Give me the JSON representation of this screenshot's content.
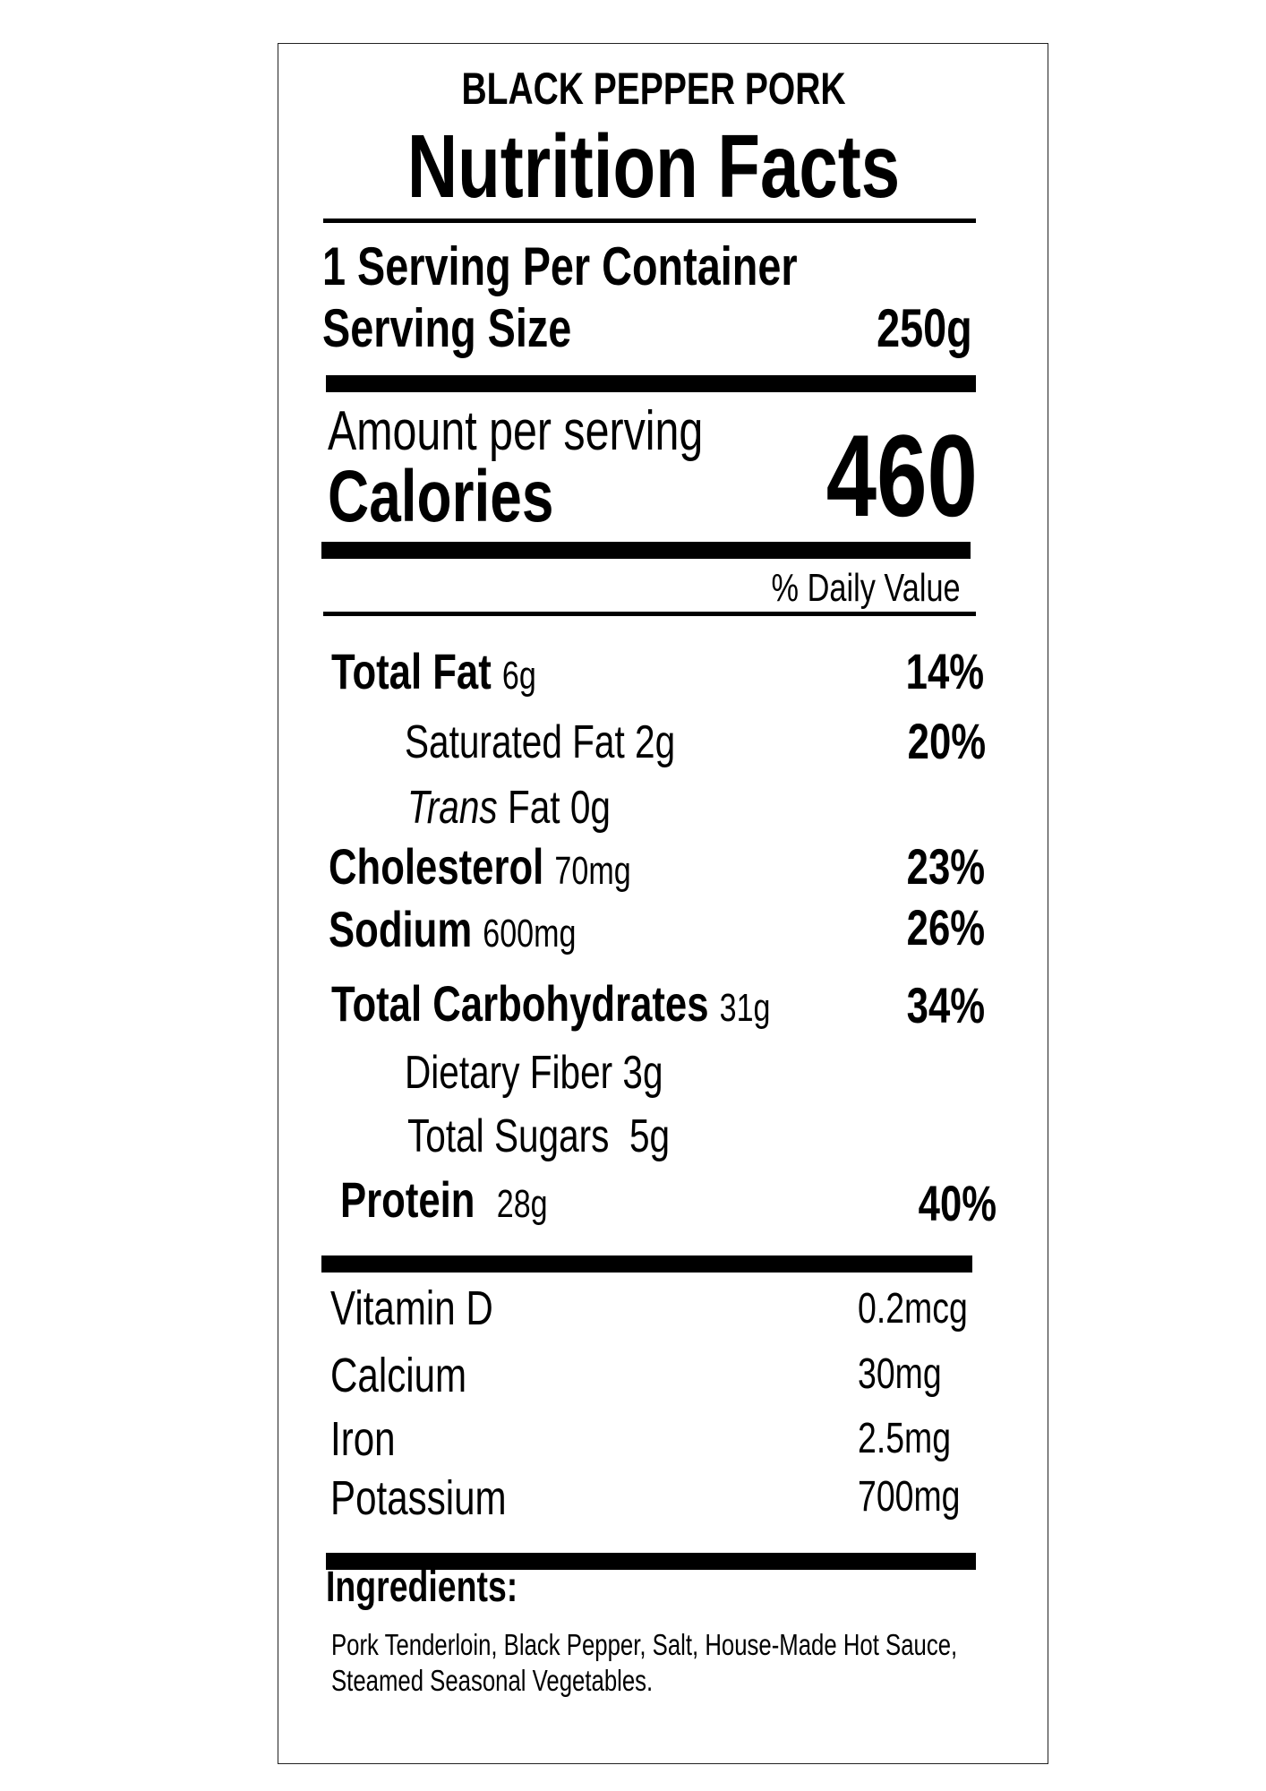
{
  "product_name": "BLACK PEPPER PORK",
  "title": "Nutrition Facts",
  "servings_per_container": "1 Serving Per Container",
  "serving_size": {
    "label": "Serving Size",
    "value": "250g"
  },
  "amount_per_serving": "Amount per serving",
  "calories": {
    "label": "Calories",
    "value": "460"
  },
  "daily_value_header": "% Daily Value",
  "nutrients": [
    {
      "label": "Total Fat",
      "amount": "6g",
      "dv": "14%"
    },
    {
      "label": "Saturated Fat",
      "amount": "2g",
      "dv": "20%"
    },
    {
      "label_italic": "Trans",
      "label": "Fat",
      "amount": "0g"
    },
    {
      "label": "Cholesterol",
      "amount": "70mg",
      "dv": "23%"
    },
    {
      "label": "Sodium",
      "amount": "600mg",
      "dv": "26%"
    },
    {
      "label": "Total Carbohydrates",
      "amount": "31g",
      "dv": "34%"
    },
    {
      "label": "Dietary Fiber",
      "amount": "3g"
    },
    {
      "label": "Total Sugars",
      "amount": "5g"
    },
    {
      "label": "Protein",
      "amount": "28g",
      "dv": "40%"
    }
  ],
  "vitamins": [
    {
      "label": "Vitamin D",
      "amount": "0.2mcg"
    },
    {
      "label": "Calcium",
      "amount": "30mg"
    },
    {
      "label": "Iron",
      "amount": "2.5mg"
    },
    {
      "label": "Potassium",
      "amount": "700mg"
    }
  ],
  "ingredients": {
    "heading": "Ingredients:",
    "line1": "Pork Tenderloin, Black Pepper, Salt, House-Made Hot Sauce,",
    "line2": "Steamed Seasonal Vegetables."
  }
}
